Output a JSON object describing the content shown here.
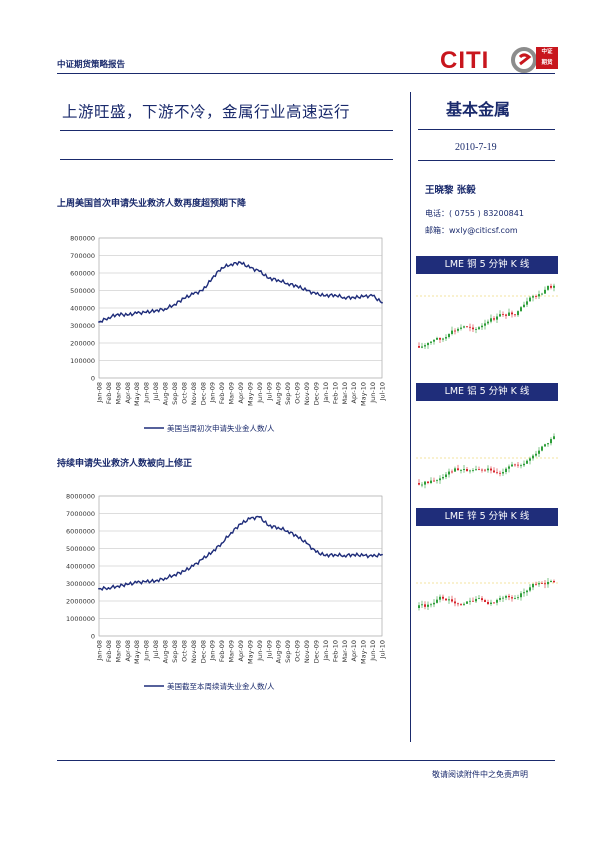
{
  "header": {
    "label": "中证期货策略报告",
    "logo_text": "CITI",
    "logo_box_top": "中证",
    "logo_box_bottom": "期货"
  },
  "title": "上游旺盛，下游不冷，金属行业高速运行",
  "sidebar": {
    "category": "基本金属",
    "date": "2010-7-19",
    "authors": "王晓黎  张毅",
    "phone": "电话：( 0755 )   83200841",
    "email": "邮箱：wxly@citicsf.com",
    "kline_boxes": [
      {
        "title": "LME 铜 5 分钟 K 线"
      },
      {
        "title": "LME 铝 5 分钟 K 线"
      },
      {
        "title": "LME 锌 5 分钟 K 线"
      }
    ]
  },
  "charts_meta": {
    "chart1_title": "上周美国首次申请失业救济人数再度超预期下降",
    "chart2_title": "持续申请失业救济人数被向上修正"
  },
  "chart_data": [
    {
      "type": "line",
      "title": "上周美国首次申请失业救济人数再度超预期下降",
      "x": [
        "Jan-08",
        "Feb-08",
        "Mar-08",
        "Apr-08",
        "May-08",
        "Jun-08",
        "Jul-08",
        "Aug-08",
        "Sep-08",
        "Oct-08",
        "Nov-08",
        "Dec-08",
        "Jan-09",
        "Feb-09",
        "Mar-09",
        "Apr-09",
        "May-09",
        "Jun-09",
        "Jul-09",
        "Aug-09",
        "Sep-09",
        "Oct-09",
        "Nov-09",
        "Dec-09",
        "Jan-10",
        "Feb-10",
        "Mar-10",
        "Apr-10",
        "May-10",
        "Jun-10",
        "Jul-10"
      ],
      "ylim": [
        0,
        800000
      ],
      "yticks": [
        0,
        100000,
        200000,
        300000,
        400000,
        500000,
        600000,
        700000,
        800000
      ],
      "legend": "美国当周初次申请失业金人数/人",
      "series": [
        {
          "name": "美国当周初次申请失业金人数/人",
          "values": [
            320000,
            345000,
            365000,
            360000,
            370000,
            375000,
            385000,
            395000,
            420000,
            455000,
            480000,
            500000,
            570000,
            630000,
            650000,
            660000,
            630000,
            610000,
            570000,
            560000,
            540000,
            525000,
            500000,
            480000,
            470000,
            475000,
            460000,
            460000,
            465000,
            470000,
            430000
          ]
        }
      ]
    },
    {
      "type": "line",
      "title": "持续申请失业救济人数被向上修正",
      "x": [
        "Jan-08",
        "Feb-08",
        "Mar-08",
        "Apr-08",
        "May-08",
        "Jun-08",
        "Jul-08",
        "Aug-08",
        "Sep-08",
        "Oct-08",
        "Nov-08",
        "Dec-08",
        "Jan-09",
        "Feb-09",
        "Mar-09",
        "Apr-09",
        "May-09",
        "Jun-09",
        "Jul-09",
        "Aug-09",
        "Sep-09",
        "Oct-09",
        "Nov-09",
        "Dec-09",
        "Jan-10",
        "Feb-10",
        "Mar-10",
        "Apr-10",
        "May-10",
        "Jun-10",
        "Jul-10"
      ],
      "ylim": [
        0,
        8000000
      ],
      "yticks": [
        0,
        1000000,
        2000000,
        3000000,
        4000000,
        5000000,
        6000000,
        7000000,
        8000000
      ],
      "legend": "美国截至本周续请失业金人数/人",
      "series": [
        {
          "name": "美国截至本周续请失业金人数/人",
          "values": [
            2700000,
            2750000,
            2850000,
            2950000,
            3050000,
            3100000,
            3150000,
            3300000,
            3500000,
            3700000,
            4000000,
            4400000,
            4800000,
            5300000,
            5900000,
            6400000,
            6700000,
            6800000,
            6300000,
            6200000,
            6000000,
            5700000,
            5300000,
            4800000,
            4600000,
            4650000,
            4600000,
            4650000,
            4600000,
            4550000,
            4650000
          ]
        }
      ]
    }
  ],
  "footer": {
    "disclaimer": "敬请阅读附件中之免责声明"
  }
}
